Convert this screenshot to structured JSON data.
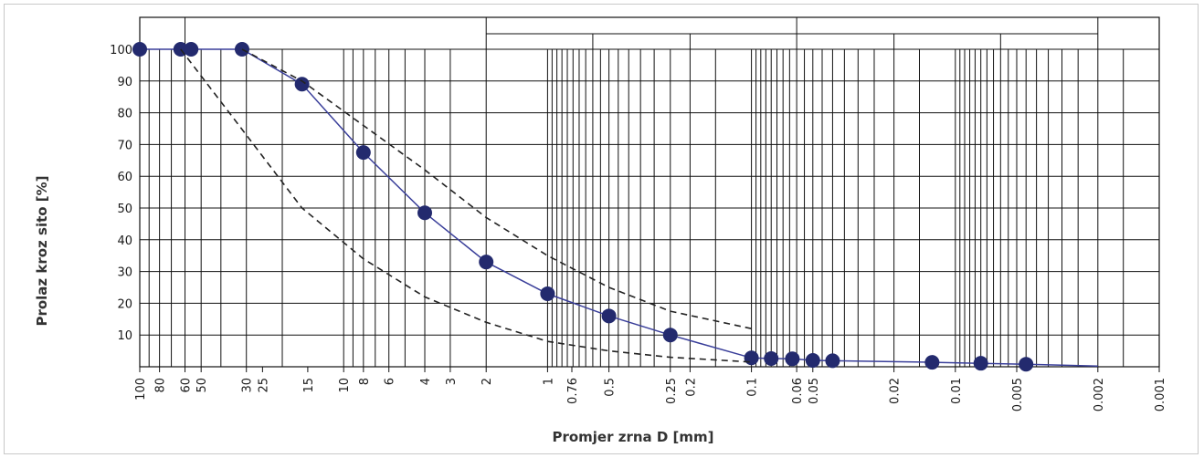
{
  "chart_data": {
    "type": "line",
    "title": "",
    "xlabel": "Promjer zrna D [mm]",
    "ylabel": "Prolaz kroz sito [%]",
    "x_scale": "log",
    "x_reversed": true,
    "xlim": [
      100,
      0.001
    ],
    "ylim": [
      0,
      100
    ],
    "y_ticks": [
      10,
      20,
      30,
      40,
      50,
      60,
      70,
      80,
      90,
      100
    ],
    "x_ticks": [
      {
        "value": 100,
        "label": "100"
      },
      {
        "value": 80,
        "label": "80"
      },
      {
        "value": 60,
        "label": "60"
      },
      {
        "value": 50,
        "label": "50"
      },
      {
        "value": 30,
        "label": "30"
      },
      {
        "value": 25,
        "label": "25"
      },
      {
        "value": 15,
        "label": "15"
      },
      {
        "value": 10,
        "label": "10"
      },
      {
        "value": 8,
        "label": "8"
      },
      {
        "value": 6,
        "label": "6"
      },
      {
        "value": 4,
        "label": "4"
      },
      {
        "value": 3,
        "label": "3"
      },
      {
        "value": 2,
        "label": "2"
      },
      {
        "value": 1,
        "label": "1"
      },
      {
        "value": 0.76,
        "label": "0.76"
      },
      {
        "value": 0.5,
        "label": "0.5"
      },
      {
        "value": 0.25,
        "label": "0.25"
      },
      {
        "value": 0.2,
        "label": "0.2"
      },
      {
        "value": 0.1,
        "label": "0.1"
      },
      {
        "value": 0.06,
        "label": "0.06"
      },
      {
        "value": 0.05,
        "label": "0.05"
      },
      {
        "value": 0.02,
        "label": "0.02"
      },
      {
        "value": 0.01,
        "label": "0.01"
      },
      {
        "value": 0.005,
        "label": "0.005"
      },
      {
        "value": 0.002,
        "label": "0.002"
      },
      {
        "value": 0.001,
        "label": "0.001"
      }
    ],
    "grid": true,
    "series": [
      {
        "style": "solid-with-markers",
        "color": "#3a3f9a",
        "marker_color": "#232a6e",
        "points": [
          [
            100,
            100
          ],
          [
            63,
            100
          ],
          [
            56,
            100
          ],
          [
            31.5,
            100
          ],
          [
            16,
            89
          ],
          [
            8,
            67.5
          ],
          [
            4,
            48.5
          ],
          [
            2,
            33
          ],
          [
            1,
            23
          ],
          [
            0.5,
            16
          ],
          [
            0.25,
            10
          ],
          [
            0.1,
            2.8
          ],
          [
            0.08,
            2.6
          ],
          [
            0.063,
            2.5
          ],
          [
            0.05,
            2.0
          ],
          [
            0.04,
            1.9
          ],
          [
            0.013,
            1.4
          ],
          [
            0.0075,
            1.1
          ],
          [
            0.0045,
            0.8
          ],
          [
            0.002,
            0.2
          ]
        ]
      },
      {
        "style": "dashed",
        "color": "#222222",
        "points": [
          [
            63,
            100
          ],
          [
            30,
            73
          ],
          [
            16,
            50
          ],
          [
            8,
            34
          ],
          [
            4,
            22
          ],
          [
            2,
            14
          ],
          [
            1,
            8
          ],
          [
            0.5,
            5
          ],
          [
            0.25,
            3
          ],
          [
            0.1,
            1.5
          ]
        ]
      },
      {
        "style": "dashed",
        "color": "#222222",
        "points": [
          [
            31.5,
            100
          ],
          [
            16,
            90
          ],
          [
            8,
            76
          ],
          [
            4,
            62
          ],
          [
            2,
            47
          ],
          [
            1,
            35
          ],
          [
            0.5,
            25
          ],
          [
            0.25,
            17.5
          ],
          [
            0.1,
            12
          ]
        ]
      }
    ]
  }
}
